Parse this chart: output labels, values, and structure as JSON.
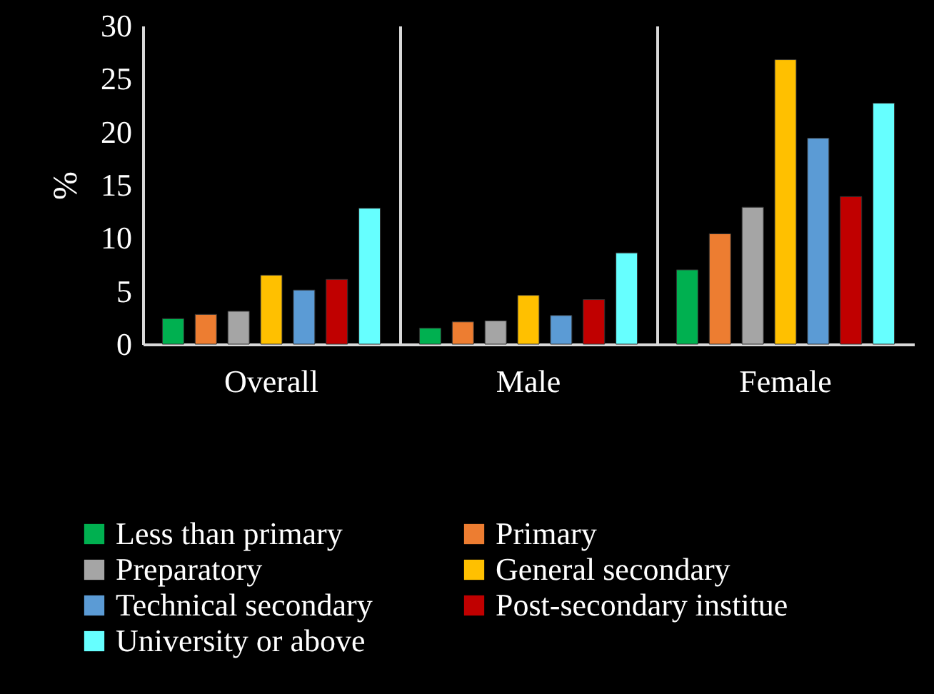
{
  "chart_data": {
    "type": "bar",
    "ylabel": "%",
    "categories": [
      "Overall",
      "Male",
      "Female"
    ],
    "series": [
      {
        "name": "Less than primary",
        "color": "#00b050",
        "values": [
          2.4,
          1.5,
          7.0
        ]
      },
      {
        "name": "Primary",
        "color": "#ed7d31",
        "values": [
          2.8,
          2.1,
          10.4
        ]
      },
      {
        "name": "Preparatory",
        "color": "#a5a5a5",
        "values": [
          3.1,
          2.2,
          12.9
        ]
      },
      {
        "name": "General secondary",
        "color": "#ffc000",
        "values": [
          6.5,
          4.6,
          26.8
        ]
      },
      {
        "name": "Technical secondary",
        "color": "#5b9bd5",
        "values": [
          5.1,
          2.7,
          19.4
        ]
      },
      {
        "name": "Post-secondary institue",
        "color": "#c00000",
        "values": [
          6.1,
          4.2,
          13.9
        ]
      },
      {
        "name": "University or above",
        "color": "#66ffff",
        "values": [
          12.8,
          8.6,
          22.7
        ]
      }
    ],
    "ylim": [
      0,
      30
    ],
    "yticks": [
      0,
      5,
      10,
      15,
      20,
      25,
      30
    ],
    "grid": "x",
    "legend": "bottom"
  }
}
